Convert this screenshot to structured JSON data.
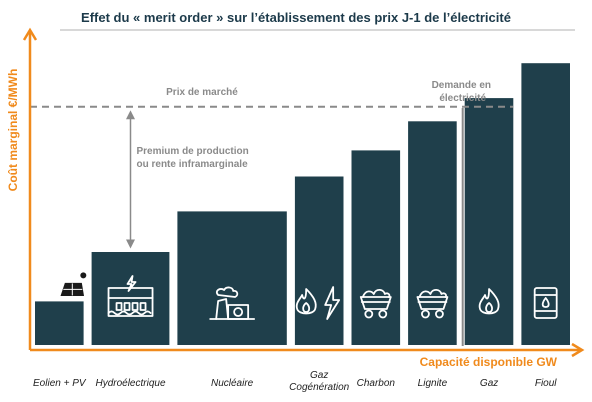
{
  "colors": {
    "bar": "#1f3f4b",
    "axis": "#f08a1c",
    "annotation": "#8a8a8a",
    "title": "#1c3a4a",
    "icon": "#ffffff"
  },
  "chart_data": {
    "type": "bar",
    "title": "Effet du « merit order » sur l’établissement des prix J-1 de l’électricité",
    "xlabel": "Capacité disponible GW",
    "ylabel": "Coût marginal €/MWh",
    "categories": [
      "Eolien + PV",
      "Hydroélectrique",
      "Nucléaire",
      "Gaz\nCogénération",
      "Charbon",
      "Lignite",
      "Gaz",
      "Fioul"
    ],
    "category_lines": [
      [
        "Eolien + PV"
      ],
      [
        "Hydroélectrique"
      ],
      [
        "Nucléaire"
      ],
      [
        "Gaz",
        "Cogénération"
      ],
      [
        "Charbon"
      ],
      [
        "Lignite"
      ],
      [
        "Gaz"
      ],
      [
        "Fioul"
      ]
    ],
    "capacity_widths": [
      1,
      1.6,
      2.25,
      1,
      1,
      1,
      1,
      1
    ],
    "values": [
      15,
      32,
      46,
      58,
      67,
      77,
      85,
      97
    ],
    "ylim": [
      0,
      105
    ],
    "grid": false,
    "legend": "none",
    "icons": [
      "wind-solar-icon",
      "dam-icon",
      "nuclear-plant-icon",
      "flame-lightning-icon",
      "coal-cart-icon",
      "coal-cart-icon",
      "flame-icon",
      "oil-barrel-icon"
    ],
    "market_price": {
      "label": "Prix de marché",
      "value": 82
    },
    "premium": {
      "lines": [
        "Premium de production",
        "ou rente inframarginale"
      ],
      "bar_index": 1
    },
    "demand": {
      "lines": [
        "Demande en",
        "électricité"
      ],
      "after_bar": 6
    }
  }
}
